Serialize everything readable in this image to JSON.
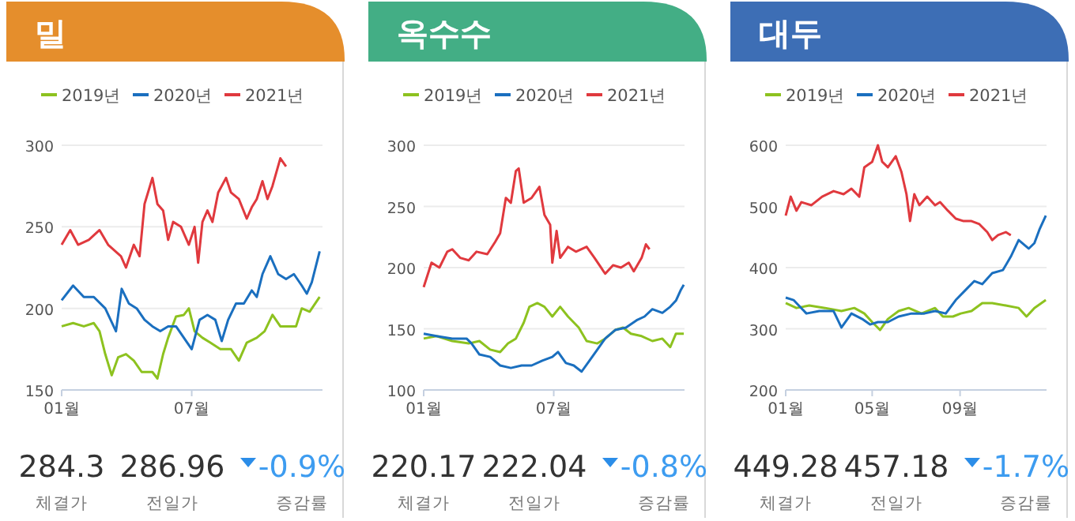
{
  "chart_data": [
    {
      "type": "line",
      "title": "밀",
      "xlim": [
        "--01-01",
        "--12-31"
      ],
      "xticks": [
        {
          "value": "--01-01",
          "label": "01월"
        },
        {
          "value": "--07-01",
          "label": "07월"
        }
      ],
      "ylim": [
        150,
        300
      ],
      "yticks": [
        150,
        200,
        250,
        300
      ],
      "grid": "y",
      "legend": "top",
      "annotations": [
        "284.3",
        "체결가",
        "286.96",
        "전일가",
        "-0.9%",
        "증감률"
      ],
      "series": [
        {
          "name": "2019년",
          "color": "#8dc21f",
          "x": [
            "--01-01",
            "--01-17",
            "--02-01",
            "--02-15",
            "--02-23",
            "--03-02",
            "--03-11",
            "--03-20",
            "--03-31",
            "--04-11",
            "--04-22",
            "--05-07",
            "--05-14",
            "--05-22",
            "--05-29",
            "--06-09",
            "--06-20",
            "--06-27",
            "--07-05",
            "--07-16",
            "--07-27",
            "--08-10",
            "--08-25",
            "--09-05",
            "--09-16",
            "--09-30",
            "--10-11",
            "--10-22",
            "--11-02",
            "--11-13",
            "--11-24",
            "--12-02",
            "--12-13",
            "--12-27"
          ],
          "values": [
            189,
            191,
            189,
            191,
            186,
            172,
            159,
            170,
            172,
            168,
            161,
            161,
            157,
            172,
            182,
            195,
            196,
            200,
            186,
            182,
            179,
            175,
            175,
            168,
            179,
            182,
            186,
            196,
            189,
            189,
            189,
            200,
            198,
            207
          ]
        },
        {
          "name": "2020년",
          "color": "#1a6fbf",
          "x": [
            "--01-01",
            "--01-17",
            "--02-01",
            "--02-15",
            "--03-02",
            "--03-17",
            "--03-25",
            "--04-04",
            "--04-15",
            "--04-26",
            "--05-07",
            "--05-18",
            "--05-29",
            "--06-09",
            "--06-20",
            "--07-01",
            "--07-12",
            "--07-23",
            "--08-03",
            "--08-12",
            "--08-21",
            "--09-01",
            "--09-12",
            "--09-23",
            "--09-30",
            "--10-08",
            "--10-19",
            "--10-30",
            "--11-10",
            "--11-21",
            "--12-02",
            "--12-09",
            "--12-16",
            "--12-27"
          ],
          "values": [
            205,
            214,
            207,
            207,
            200,
            186,
            212,
            203,
            200,
            193,
            189,
            186,
            189,
            189,
            182,
            175,
            193,
            196,
            193,
            180,
            193,
            203,
            203,
            211,
            207,
            221,
            232,
            221,
            218,
            221,
            214,
            209,
            216,
            235
          ]
        },
        {
          "name": "2021년",
          "color": "#e0393e",
          "x": [
            "--01-01",
            "--01-13",
            "--01-24",
            "--02-08",
            "--02-23",
            "--03-06",
            "--03-24",
            "--03-31",
            "--04-11",
            "--04-19",
            "--04-26",
            "--05-07",
            "--05-14",
            "--05-22",
            "--05-29",
            "--06-05",
            "--06-16",
            "--06-27",
            "--07-05",
            "--07-10",
            "--07-16",
            "--07-23",
            "--07-30",
            "--08-07",
            "--08-18",
            "--08-25",
            "--09-05",
            "--09-16",
            "--09-23",
            "--09-30",
            "--10-08",
            "--10-15",
            "--10-22",
            "--11-02",
            "--11-10"
          ],
          "values": [
            239,
            248,
            239,
            242,
            248,
            239,
            232,
            225,
            239,
            232,
            264,
            280,
            264,
            260,
            242,
            253,
            250,
            239,
            250,
            228,
            253,
            260,
            253,
            271,
            280,
            271,
            267,
            255,
            262,
            267,
            278,
            267,
            275,
            292,
            287
          ]
        }
      ]
    },
    {
      "type": "line",
      "title": "옥수수",
      "xlim": [
        "--01-01",
        "--12-31"
      ],
      "xticks": [
        {
          "value": "--01-01",
          "label": "01월"
        },
        {
          "value": "--07-01",
          "label": "07월"
        }
      ],
      "ylim": [
        100,
        300
      ],
      "yticks": [
        100,
        150,
        200,
        250,
        300
      ],
      "grid": "y",
      "legend": "top",
      "annotations": [
        "220.17",
        "체결가",
        "222.04",
        "전일가",
        "-0.8%",
        "증감률"
      ],
      "series": [
        {
          "name": "2019년",
          "color": "#8dc21f",
          "x": [
            "--01-01",
            "--01-19",
            "--02-10",
            "--03-04",
            "--03-19",
            "--04-03",
            "--04-17",
            "--04-28",
            "--05-09",
            "--05-20",
            "--05-28",
            "--06-08",
            "--06-18",
            "--06-29",
            "--07-10",
            "--07-21",
            "--08-05",
            "--08-16",
            "--08-31",
            "--09-11",
            "--09-25",
            "--10-06",
            "--10-17",
            "--11-01",
            "--11-16",
            "--11-30",
            "--12-11",
            "--12-19",
            "--12-30"
          ],
          "values": [
            142,
            144,
            140,
            138,
            140,
            133,
            131,
            138,
            142,
            155,
            168,
            171,
            168,
            160,
            168,
            160,
            151,
            140,
            138,
            142,
            149,
            151,
            146,
            144,
            140,
            142,
            135,
            146,
            146
          ]
        },
        {
          "name": "2020년",
          "color": "#1a6fbf",
          "x": [
            "--01-01",
            "--01-19",
            "--02-10",
            "--03-01",
            "--03-08",
            "--03-19",
            "--04-03",
            "--04-17",
            "--05-02",
            "--05-17",
            "--05-31",
            "--06-15",
            "--06-29",
            "--07-07",
            "--07-18",
            "--07-29",
            "--08-09",
            "--08-20",
            "--08-31",
            "--09-11",
            "--09-25",
            "--10-10",
            "--10-25",
            "--11-05",
            "--11-16",
            "--11-30",
            "--12-11",
            "--12-19",
            "--12-26",
            "--12-30"
          ],
          "values": [
            146,
            144,
            142,
            142,
            138,
            129,
            127,
            120,
            118,
            120,
            120,
            124,
            127,
            131,
            122,
            120,
            115,
            124,
            133,
            142,
            149,
            151,
            157,
            160,
            166,
            163,
            168,
            173,
            182,
            186
          ]
        },
        {
          "name": "2021년",
          "color": "#e0393e",
          "x": [
            "--01-01",
            "--01-12",
            "--01-23",
            "--02-03",
            "--02-10",
            "--02-21",
            "--03-04",
            "--03-15",
            "--03-30",
            "--04-10",
            "--04-17",
            "--04-25",
            "--05-02",
            "--05-09",
            "--05-13",
            "--05-20",
            "--05-31",
            "--06-11",
            "--06-18",
            "--06-26",
            "--06-29",
            "--07-05",
            "--07-10",
            "--07-21",
            "--08-01",
            "--08-16",
            "--08-27",
            "--09-11",
            "--09-22",
            "--10-03",
            "--10-14",
            "--10-21",
            "--11-01",
            "--11-07",
            "--11-12"
          ],
          "values": [
            184,
            204,
            200,
            213,
            215,
            208,
            206,
            213,
            211,
            221,
            228,
            257,
            253,
            279,
            281,
            253,
            257,
            266,
            243,
            235,
            204,
            230,
            208,
            217,
            213,
            217,
            208,
            195,
            202,
            200,
            204,
            197,
            208,
            219,
            215
          ]
        }
      ]
    },
    {
      "type": "line",
      "title": "대두",
      "xlim": [
        "--01-01",
        "--12-31"
      ],
      "xticks": [
        {
          "value": "--01-01",
          "label": "01월"
        },
        {
          "value": "--05-01",
          "label": "05월"
        },
        {
          "value": "--09-01",
          "label": "09월"
        }
      ],
      "ylim": [
        200,
        600
      ],
      "yticks": [
        200,
        300,
        400,
        500,
        600
      ],
      "grid": "y",
      "legend": "top",
      "annotations": [
        "449.28",
        "체결가",
        "457.18",
        "전일가",
        "-1.7%",
        "증감률"
      ],
      "series": [
        {
          "name": "2019년",
          "color": "#8dc21f",
          "x": [
            "--01-01",
            "--01-16",
            "--02-03",
            "--02-25",
            "--03-19",
            "--04-06",
            "--04-20",
            "--05-01",
            "--05-12",
            "--05-23",
            "--06-07",
            "--06-21",
            "--07-09",
            "--07-28",
            "--08-08",
            "--08-22",
            "--09-02",
            "--09-17",
            "--10-02",
            "--10-16",
            "--11-04",
            "--11-22",
            "--12-03",
            "--12-14",
            "--12-30"
          ],
          "values": [
            342,
            334,
            338,
            334,
            329,
            334,
            325,
            311,
            298,
            316,
            329,
            334,
            325,
            334,
            320,
            320,
            325,
            329,
            342,
            342,
            338,
            334,
            320,
            334,
            347
          ]
        },
        {
          "name": "2020년",
          "color": "#1a6fbf",
          "x": [
            "--01-01",
            "--01-12",
            "--01-30",
            "--02-17",
            "--03-08",
            "--03-19",
            "--04-02",
            "--04-17",
            "--04-28",
            "--05-09",
            "--05-23",
            "--06-07",
            "--06-25",
            "--07-13",
            "--07-28",
            "--08-12",
            "--08-26",
            "--09-10",
            "--09-21",
            "--10-02",
            "--10-16",
            "--10-31",
            "--11-11",
            "--11-22",
            "--12-06",
            "--12-14",
            "--12-21",
            "--12-30"
          ],
          "values": [
            351,
            347,
            325,
            329,
            329,
            302,
            325,
            316,
            307,
            311,
            311,
            320,
            325,
            325,
            329,
            325,
            347,
            365,
            378,
            373,
            391,
            396,
            418,
            445,
            431,
            440,
            462,
            485
          ]
        },
        {
          "name": "2021년",
          "color": "#e0393e",
          "x": [
            "--01-01",
            "--01-08",
            "--01-16",
            "--01-23",
            "--02-06",
            "--02-21",
            "--03-08",
            "--03-22",
            "--04-02",
            "--04-13",
            "--04-20",
            "--05-01",
            "--05-09",
            "--05-15",
            "--05-23",
            "--06-03",
            "--06-11",
            "--06-18",
            "--06-23",
            "--06-29",
            "--07-06",
            "--07-17",
            "--07-28",
            "--08-04",
            "--08-15",
            "--08-26",
            "--09-06",
            "--09-17",
            "--09-28",
            "--10-09",
            "--10-16",
            "--10-24",
            "--11-04",
            "--11-11"
          ],
          "values": [
            485,
            516,
            493,
            507,
            502,
            516,
            525,
            520,
            529,
            516,
            564,
            573,
            600,
            573,
            564,
            582,
            556,
            520,
            476,
            520,
            502,
            516,
            502,
            507,
            493,
            480,
            476,
            476,
            471,
            458,
            445,
            453,
            458,
            453
          ]
        }
      ]
    }
  ]
}
